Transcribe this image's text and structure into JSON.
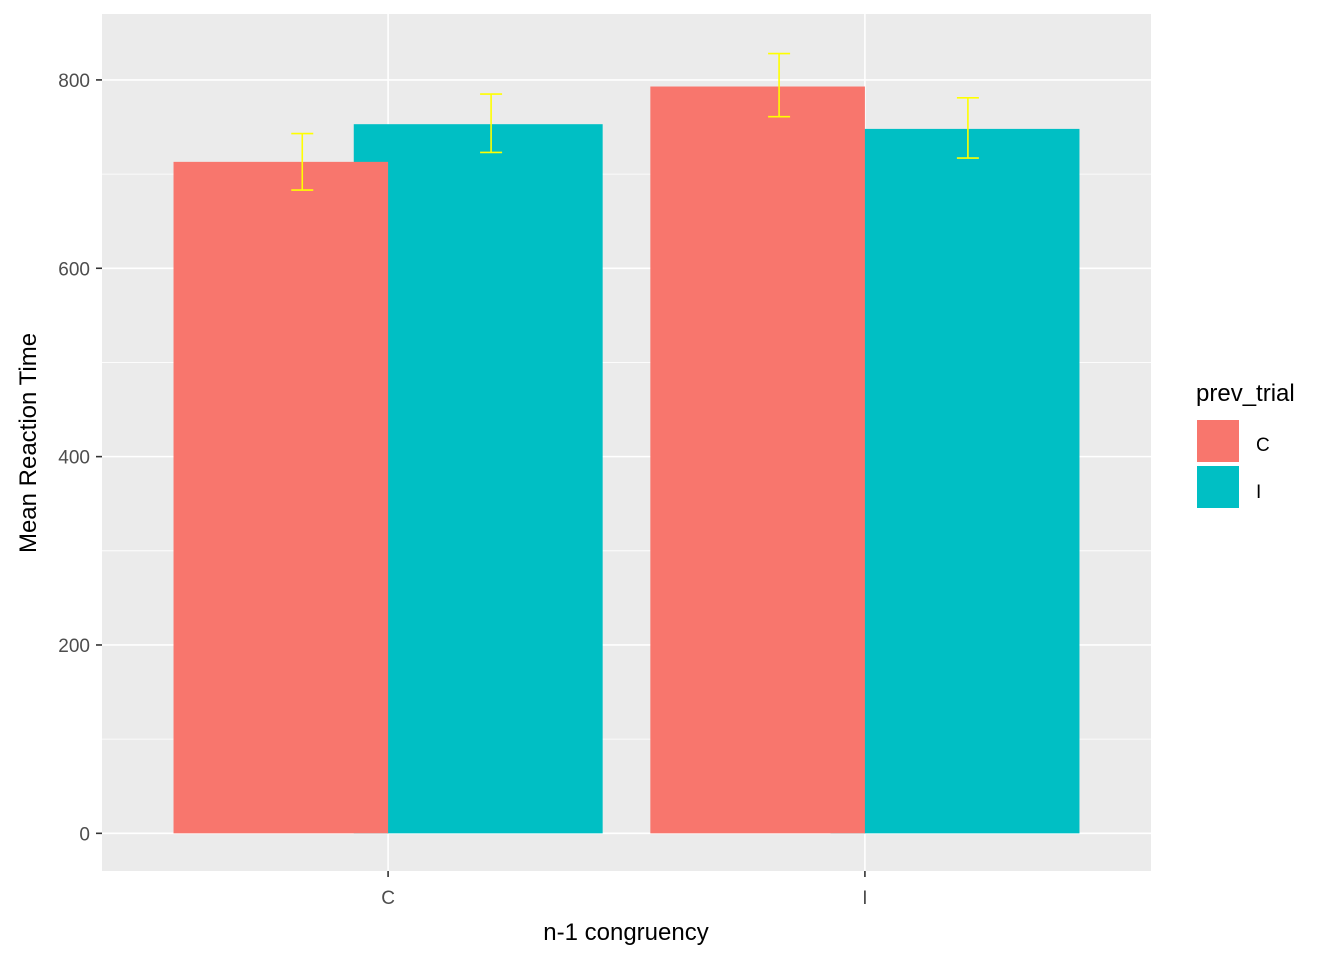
{
  "chart_data": {
    "type": "bar",
    "xlabel": "n-1 congruency",
    "ylabel": "Mean Reaction Time",
    "categories": [
      "C",
      "I"
    ],
    "series": [
      {
        "name": "C",
        "color": "#F8766D",
        "values": [
          713,
          793
        ],
        "error_low": [
          683,
          761
        ],
        "error_high": [
          743,
          828
        ]
      },
      {
        "name": "I",
        "color": "#00BFC4",
        "values": [
          753,
          748
        ],
        "error_low": [
          723,
          717
        ],
        "error_high": [
          785,
          781
        ]
      }
    ],
    "ylim": [
      -40,
      870
    ],
    "yticks": [
      0,
      200,
      400,
      600,
      800
    ],
    "grid": true,
    "error_bar_color": "#FFFF00",
    "legend": {
      "title": "prev_trial",
      "position": "right",
      "items": [
        "C",
        "I"
      ]
    },
    "panel_background": "#EBEBEB",
    "grid_color": "#FFFFFF"
  }
}
